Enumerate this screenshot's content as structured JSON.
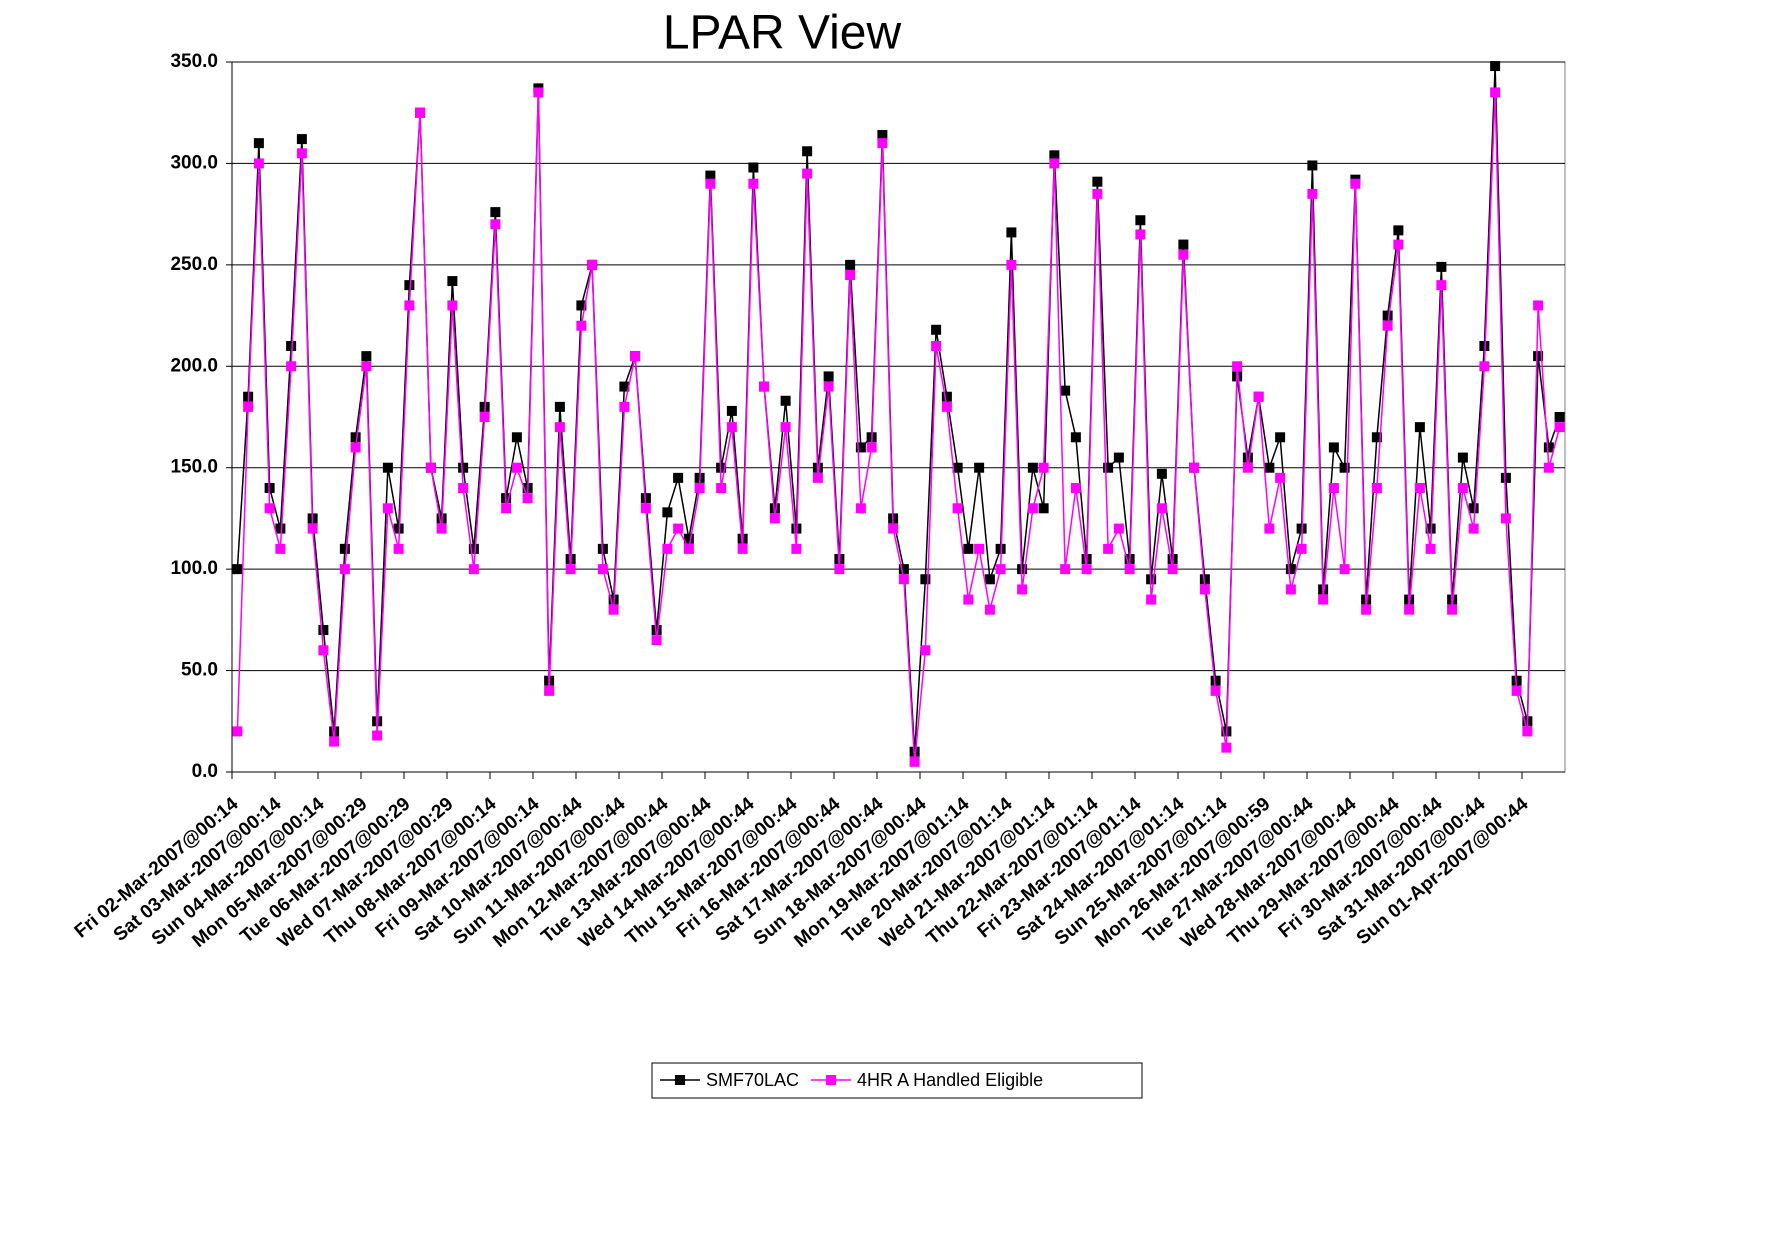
{
  "chart_data": {
    "type": "line",
    "title": "LPAR View",
    "categories": [
      "Fri 02-Mar-2007@00:14",
      null,
      null,
      null,
      "Sat 03-Mar-2007@00:14",
      null,
      null,
      null,
      "Sun 04-Mar-2007@00:14",
      null,
      null,
      null,
      "Mon 05-Mar-2007@00:29",
      null,
      null,
      null,
      "Tue 06-Mar-2007@00:29",
      null,
      null,
      null,
      "Wed 07-Mar-2007@00:29",
      null,
      null,
      null,
      "Thu 08-Mar-2007@00:14",
      null,
      null,
      null,
      "Fri 09-Mar-2007@00:14",
      null,
      null,
      null,
      "Sat 10-Mar-2007@00:44",
      null,
      null,
      null,
      "Sun 11-Mar-2007@00:44",
      null,
      null,
      null,
      "Mon 12-Mar-2007@00:44",
      null,
      null,
      null,
      "Tue 13-Mar-2007@00:44",
      null,
      null,
      null,
      "Wed 14-Mar-2007@00:44",
      null,
      null,
      null,
      "Thu 15-Mar-2007@00:44",
      null,
      null,
      null,
      "Fri 16-Mar-2007@00:44",
      null,
      null,
      null,
      "Sat 17-Mar-2007@00:44",
      null,
      null,
      null,
      "Sun 18-Mar-2007@00:44",
      null,
      null,
      null,
      "Mon 19-Mar-2007@01:14",
      null,
      null,
      null,
      "Tue 20-Mar-2007@01:14",
      null,
      null,
      null,
      "Wed 21-Mar-2007@01:14",
      null,
      null,
      null,
      "Thu 22-Mar-2007@01:14",
      null,
      null,
      null,
      "Fri 23-Mar-2007@01:14",
      null,
      null,
      null,
      "Sat 24-Mar-2007@01:14",
      null,
      null,
      null,
      "Sun 25-Mar-2007@01:14",
      null,
      null,
      null,
      "Mon 26-Mar-2007@00:59",
      null,
      null,
      null,
      "Tue 27-Mar-2007@00:44",
      null,
      null,
      null,
      "Wed 28-Mar-2007@00:44",
      null,
      null,
      null,
      "Thu 29-Mar-2007@00:44",
      null,
      null,
      null,
      "Fri 30-Mar-2007@00:44",
      null,
      null,
      null,
      "Sat 31-Mar-2007@00:44",
      null,
      null,
      null,
      "Sun 01-Apr-2007@00:44",
      null,
      null,
      null
    ],
    "series": [
      {
        "name": "SMF70LAC",
        "color": "#000000",
        "values": [
          100,
          185,
          310,
          140,
          120,
          210,
          312,
          125,
          70,
          20,
          110,
          165,
          205,
          25,
          150,
          120,
          240,
          325,
          150,
          125,
          242,
          150,
          110,
          180,
          276,
          135,
          165,
          140,
          337,
          45,
          180,
          105,
          230,
          250,
          110,
          85,
          190,
          205,
          135,
          70,
          128,
          145,
          115,
          145,
          294,
          150,
          178,
          115,
          298,
          190,
          130,
          183,
          120,
          306,
          150,
          195,
          105,
          250,
          160,
          165,
          314,
          125,
          100,
          10,
          95,
          218,
          185,
          150,
          110,
          150,
          95,
          110,
          266,
          100,
          150,
          130,
          304,
          188,
          165,
          105,
          291,
          150,
          155,
          105,
          272,
          95,
          147,
          105,
          260,
          150,
          95,
          45,
          20,
          195,
          155,
          185,
          150,
          165,
          100,
          120,
          299,
          90,
          160,
          150,
          292,
          85,
          165,
          225,
          267,
          85,
          170,
          120,
          249,
          85,
          155,
          130,
          210,
          348,
          145,
          45,
          25,
          205,
          160,
          175
        ]
      },
      {
        "name": "4HR A Handled Eligible",
        "color": "#ff00ff",
        "values": [
          20,
          180,
          300,
          130,
          110,
          200,
          305,
          120,
          60,
          15,
          100,
          160,
          200,
          18,
          130,
          110,
          230,
          325,
          150,
          120,
          230,
          140,
          100,
          175,
          270,
          130,
          150,
          135,
          335,
          40,
          170,
          100,
          220,
          250,
          100,
          80,
          180,
          205,
          130,
          65,
          110,
          120,
          110,
          140,
          290,
          140,
          170,
          110,
          290,
          190,
          125,
          170,
          110,
          295,
          145,
          190,
          100,
          245,
          130,
          160,
          310,
          120,
          95,
          5,
          60,
          210,
          180,
          130,
          85,
          110,
          80,
          100,
          250,
          90,
          130,
          150,
          300,
          100,
          140,
          100,
          285,
          110,
          120,
          100,
          265,
          85,
          130,
          100,
          255,
          150,
          90,
          40,
          12,
          200,
          150,
          185,
          120,
          145,
          90,
          110,
          285,
          85,
          140,
          100,
          290,
          80,
          140,
          220,
          260,
          80,
          140,
          110,
          240,
          80,
          140,
          120,
          200,
          335,
          125,
          40,
          20,
          230,
          150,
          170
        ]
      }
    ],
    "ylim": [
      0,
      350
    ],
    "yticks": [
      {
        "value": 0,
        "label": "0.0"
      },
      {
        "value": 50,
        "label": "50.0"
      },
      {
        "value": 100,
        "label": "100.0"
      },
      {
        "value": 150,
        "label": "150.0"
      },
      {
        "value": 200,
        "label": "200.0"
      },
      {
        "value": 250,
        "label": "250.0"
      },
      {
        "value": 300,
        "label": "300.0"
      },
      {
        "value": 350,
        "label": "350.0"
      }
    ],
    "grid": true
  }
}
